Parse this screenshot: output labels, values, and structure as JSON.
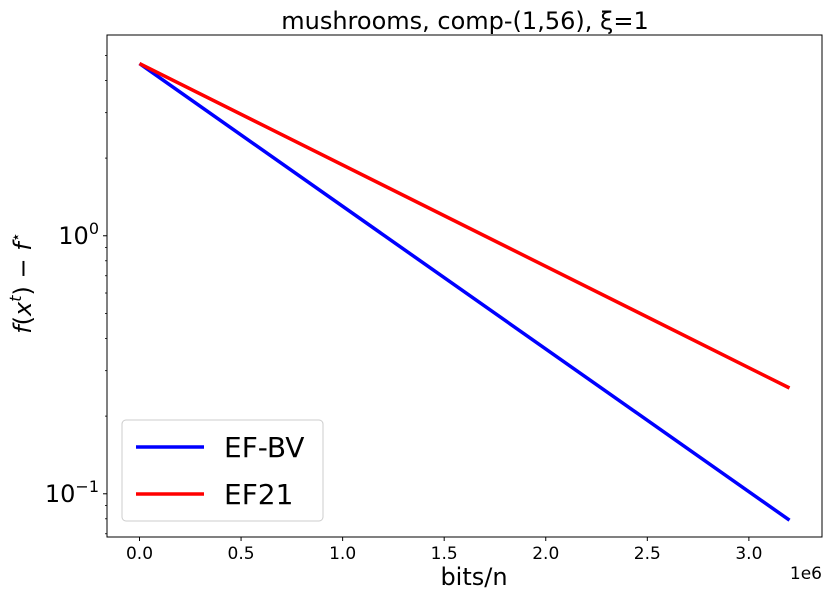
{
  "chart_data": {
    "type": "line",
    "title": "mushrooms, comp-(1,56), ξ=1",
    "xlabel": "bits/n",
    "ylabel": "f(xᵗ) − f*",
    "x_offset_text": "1e6",
    "x_scale": "linear",
    "y_scale": "log",
    "xlim": [
      -160000,
      3360000
    ],
    "ylim": [
      0.068,
      6.0
    ],
    "x_ticks": [
      0,
      500000,
      1000000,
      1500000,
      2000000,
      2500000,
      3000000
    ],
    "x_tick_labels": [
      "0.0",
      "0.5",
      "1.0",
      "1.5",
      "2.0",
      "2.5",
      "3.0"
    ],
    "y_ticks": [
      0.1,
      1.0
    ],
    "y_tick_labels": [
      {
        "base": "10",
        "exp": "−1"
      },
      {
        "base": "10",
        "exp": "0"
      }
    ],
    "grid": false,
    "legend_position": "lower-left",
    "series": [
      {
        "name": "EF-BV",
        "color": "#0000ff",
        "x": [
          0,
          3200000
        ],
        "y": [
          4.65,
          0.079
        ]
      },
      {
        "name": "EF21",
        "color": "#ff0000",
        "x": [
          0,
          3200000
        ],
        "y": [
          4.65,
          0.257
        ]
      }
    ]
  }
}
